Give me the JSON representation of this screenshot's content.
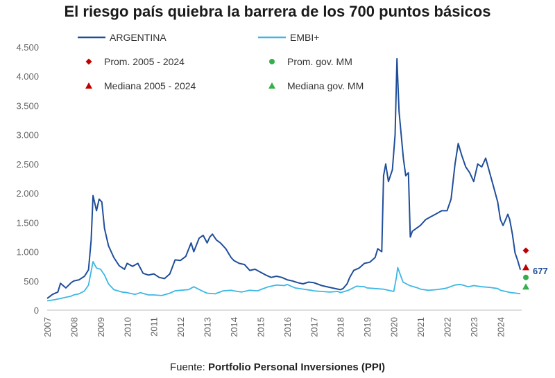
{
  "page": {
    "title": "El riesgo país quiebra la barrera de los 700 puntos básicos",
    "source_label": "Fuente:",
    "source_name": "Portfolio Personal Inversiones (PPI)"
  },
  "colors": {
    "argentina": "#1f4e9a",
    "embi": "#3db7e4",
    "avg_total": "#c00000",
    "avg_gov": "#33b04a",
    "axis_text": "#666666"
  },
  "chart_data": {
    "type": "line",
    "title": "El riesgo país quiebra la barrera de los 700 puntos básicos",
    "xlabel": "",
    "ylabel": "",
    "xlim": [
      2007,
      2024.8
    ],
    "ylim": [
      0,
      4500
    ],
    "y_ticks": [
      0,
      500,
      1000,
      1500,
      2000,
      2500,
      3000,
      3500,
      4000,
      4500
    ],
    "y_tick_labels": [
      "0",
      "500",
      "1.000",
      "1.500",
      "2.000",
      "2.500",
      "3.000",
      "3.500",
      "4.000",
      "4.500"
    ],
    "x_ticks": [
      "2007",
      "2008",
      "2009",
      "2010",
      "2011",
      "2012",
      "2013",
      "2014",
      "2015",
      "2016",
      "2017",
      "2018",
      "2019",
      "2020",
      "2021",
      "2022",
      "2023",
      "2024"
    ],
    "grid": false,
    "legend_position": "top-left",
    "series": [
      {
        "name": "ARGENTINA",
        "style": "line",
        "points": [
          [
            2007.0,
            200
          ],
          [
            2007.2,
            270
          ],
          [
            2007.4,
            310
          ],
          [
            2007.5,
            460
          ],
          [
            2007.7,
            380
          ],
          [
            2007.9,
            470
          ],
          [
            2008.0,
            500
          ],
          [
            2008.2,
            520
          ],
          [
            2008.4,
            580
          ],
          [
            2008.55,
            690
          ],
          [
            2008.65,
            1200
          ],
          [
            2008.72,
            1960
          ],
          [
            2008.85,
            1700
          ],
          [
            2008.95,
            1900
          ],
          [
            2009.05,
            1850
          ],
          [
            2009.15,
            1400
          ],
          [
            2009.3,
            1100
          ],
          [
            2009.5,
            900
          ],
          [
            2009.7,
            760
          ],
          [
            2009.9,
            700
          ],
          [
            2010.0,
            800
          ],
          [
            2010.2,
            750
          ],
          [
            2010.4,
            800
          ],
          [
            2010.6,
            630
          ],
          [
            2010.8,
            600
          ],
          [
            2011.0,
            620
          ],
          [
            2011.2,
            560
          ],
          [
            2011.4,
            540
          ],
          [
            2011.6,
            620
          ],
          [
            2011.8,
            860
          ],
          [
            2012.0,
            850
          ],
          [
            2012.2,
            920
          ],
          [
            2012.4,
            1150
          ],
          [
            2012.5,
            1000
          ],
          [
            2012.7,
            1230
          ],
          [
            2012.85,
            1280
          ],
          [
            2013.0,
            1150
          ],
          [
            2013.1,
            1250
          ],
          [
            2013.2,
            1300
          ],
          [
            2013.35,
            1200
          ],
          [
            2013.5,
            1150
          ],
          [
            2013.7,
            1050
          ],
          [
            2013.9,
            900
          ],
          [
            2014.0,
            850
          ],
          [
            2014.2,
            800
          ],
          [
            2014.4,
            780
          ],
          [
            2014.6,
            680
          ],
          [
            2014.8,
            700
          ],
          [
            2015.0,
            650
          ],
          [
            2015.2,
            600
          ],
          [
            2015.4,
            560
          ],
          [
            2015.6,
            580
          ],
          [
            2015.8,
            560
          ],
          [
            2016.0,
            520
          ],
          [
            2016.2,
            500
          ],
          [
            2016.4,
            470
          ],
          [
            2016.6,
            450
          ],
          [
            2016.8,
            480
          ],
          [
            2017.0,
            470
          ],
          [
            2017.3,
            420
          ],
          [
            2017.6,
            390
          ],
          [
            2017.9,
            360
          ],
          [
            2018.0,
            350
          ],
          [
            2018.1,
            370
          ],
          [
            2018.25,
            450
          ],
          [
            2018.35,
            560
          ],
          [
            2018.5,
            680
          ],
          [
            2018.7,
            720
          ],
          [
            2018.9,
            800
          ],
          [
            2019.1,
            820
          ],
          [
            2019.3,
            900
          ],
          [
            2019.4,
            1050
          ],
          [
            2019.55,
            1000
          ],
          [
            2019.62,
            2300
          ],
          [
            2019.7,
            2500
          ],
          [
            2019.8,
            2200
          ],
          [
            2019.95,
            2400
          ],
          [
            2020.05,
            3000
          ],
          [
            2020.12,
            4300
          ],
          [
            2020.2,
            3400
          ],
          [
            2020.28,
            3000
          ],
          [
            2020.36,
            2600
          ],
          [
            2020.45,
            2300
          ],
          [
            2020.55,
            2350
          ],
          [
            2020.62,
            1250
          ],
          [
            2020.7,
            1350
          ],
          [
            2020.85,
            1400
          ],
          [
            2021.0,
            1450
          ],
          [
            2021.2,
            1550
          ],
          [
            2021.4,
            1600
          ],
          [
            2021.6,
            1650
          ],
          [
            2021.8,
            1700
          ],
          [
            2022.0,
            1700
          ],
          [
            2022.15,
            1900
          ],
          [
            2022.3,
            2500
          ],
          [
            2022.42,
            2850
          ],
          [
            2022.55,
            2650
          ],
          [
            2022.7,
            2450
          ],
          [
            2022.85,
            2350
          ],
          [
            2023.0,
            2200
          ],
          [
            2023.15,
            2500
          ],
          [
            2023.3,
            2450
          ],
          [
            2023.45,
            2600
          ],
          [
            2023.6,
            2350
          ],
          [
            2023.75,
            2100
          ],
          [
            2023.9,
            1850
          ],
          [
            2024.0,
            1550
          ],
          [
            2024.1,
            1450
          ],
          [
            2024.2,
            1550
          ],
          [
            2024.28,
            1640
          ],
          [
            2024.35,
            1550
          ],
          [
            2024.45,
            1300
          ],
          [
            2024.55,
            980
          ],
          [
            2024.65,
            850
          ],
          [
            2024.75,
            690
          ]
        ]
      },
      {
        "name": "EMBI+",
        "style": "line",
        "points": [
          [
            2007.0,
            160
          ],
          [
            2007.3,
            180
          ],
          [
            2007.6,
            210
          ],
          [
            2007.9,
            240
          ],
          [
            2008.0,
            260
          ],
          [
            2008.2,
            280
          ],
          [
            2008.4,
            330
          ],
          [
            2008.55,
            430
          ],
          [
            2008.72,
            830
          ],
          [
            2008.85,
            720
          ],
          [
            2009.0,
            700
          ],
          [
            2009.15,
            600
          ],
          [
            2009.3,
            450
          ],
          [
            2009.5,
            350
          ],
          [
            2009.8,
            310
          ],
          [
            2010.0,
            300
          ],
          [
            2010.3,
            270
          ],
          [
            2010.5,
            300
          ],
          [
            2010.8,
            260
          ],
          [
            2011.0,
            260
          ],
          [
            2011.3,
            250
          ],
          [
            2011.6,
            290
          ],
          [
            2011.8,
            330
          ],
          [
            2012.0,
            340
          ],
          [
            2012.3,
            350
          ],
          [
            2012.5,
            400
          ],
          [
            2012.8,
            330
          ],
          [
            2013.0,
            290
          ],
          [
            2013.3,
            280
          ],
          [
            2013.6,
            330
          ],
          [
            2013.9,
            340
          ],
          [
            2014.0,
            330
          ],
          [
            2014.3,
            310
          ],
          [
            2014.6,
            340
          ],
          [
            2014.9,
            330
          ],
          [
            2015.0,
            350
          ],
          [
            2015.3,
            400
          ],
          [
            2015.6,
            430
          ],
          [
            2015.9,
            420
          ],
          [
            2016.0,
            440
          ],
          [
            2016.3,
            380
          ],
          [
            2016.6,
            360
          ],
          [
            2016.9,
            340
          ],
          [
            2017.0,
            330
          ],
          [
            2017.3,
            320
          ],
          [
            2017.6,
            310
          ],
          [
            2017.9,
            320
          ],
          [
            2018.0,
            300
          ],
          [
            2018.3,
            340
          ],
          [
            2018.6,
            410
          ],
          [
            2018.9,
            400
          ],
          [
            2019.0,
            380
          ],
          [
            2019.3,
            370
          ],
          [
            2019.6,
            360
          ],
          [
            2019.9,
            330
          ],
          [
            2020.0,
            320
          ],
          [
            2020.1,
            560
          ],
          [
            2020.15,
            730
          ],
          [
            2020.25,
            600
          ],
          [
            2020.35,
            480
          ],
          [
            2020.6,
            420
          ],
          [
            2020.9,
            380
          ],
          [
            2021.0,
            360
          ],
          [
            2021.3,
            340
          ],
          [
            2021.6,
            350
          ],
          [
            2021.9,
            370
          ],
          [
            2022.0,
            380
          ],
          [
            2022.3,
            430
          ],
          [
            2022.5,
            440
          ],
          [
            2022.8,
            400
          ],
          [
            2023.0,
            420
          ],
          [
            2023.3,
            400
          ],
          [
            2023.6,
            390
          ],
          [
            2023.9,
            370
          ],
          [
            2024.0,
            340
          ],
          [
            2024.2,
            320
          ],
          [
            2024.4,
            300
          ],
          [
            2024.6,
            290
          ],
          [
            2024.75,
            280
          ]
        ]
      },
      {
        "name": "Prom. 2005 - 2024",
        "style": "marker-diamond",
        "points": [
          [
            2024.8,
            1020
          ]
        ]
      },
      {
        "name": "Prom. gov. MM",
        "style": "marker-circle",
        "points": [
          [
            2024.8,
            560
          ]
        ]
      },
      {
        "name": "Mediana 2005 - 2024",
        "style": "marker-triangle",
        "points": [
          [
            2024.8,
            730
          ]
        ]
      },
      {
        "name": "Mediana gov. MM",
        "style": "marker-triangle",
        "points": [
          [
            2024.8,
            400
          ]
        ]
      }
    ],
    "annotations": [
      {
        "text": "677",
        "x": 2024.8,
        "y": 677
      }
    ]
  }
}
